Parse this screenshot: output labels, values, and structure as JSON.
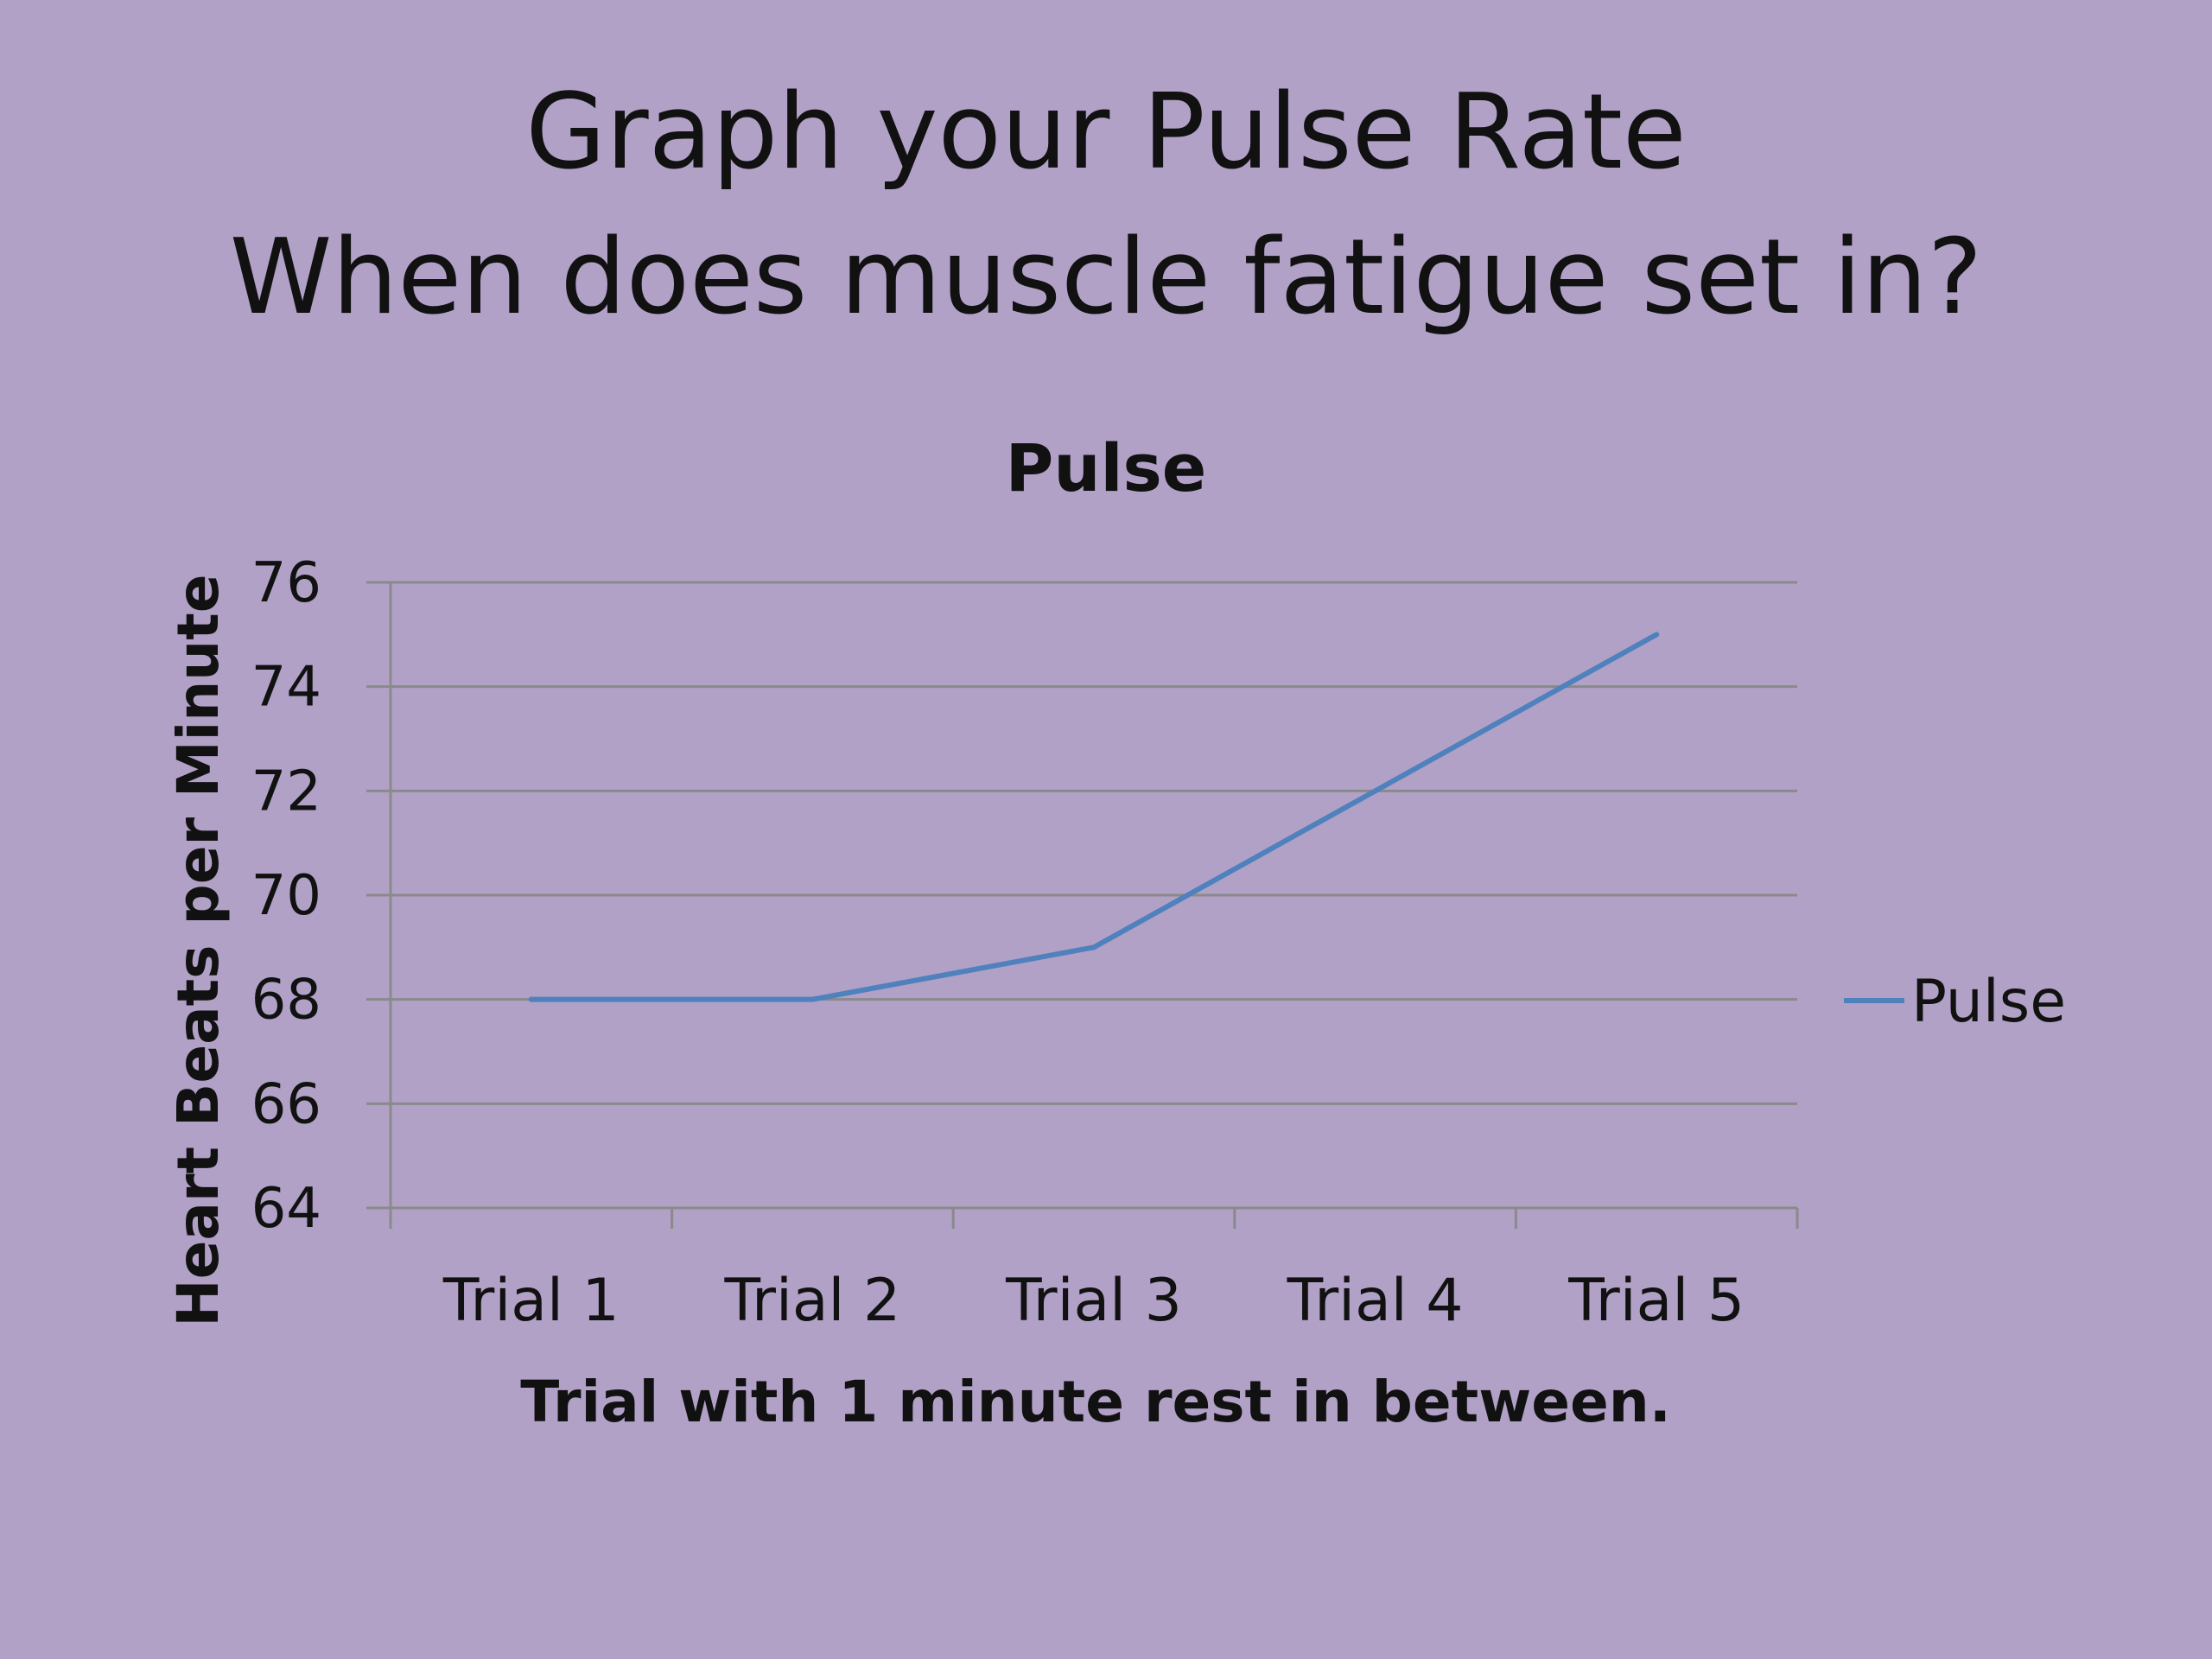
{
  "slide": {
    "title_line1": "Graph your Pulse Rate",
    "title_line2": "When does muscle fatigue set in?"
  },
  "colors": {
    "background": "#b1a1c7",
    "series": "#4f81bd",
    "gridline": "#8a8a8a",
    "text": "#111111"
  },
  "chart_data": {
    "type": "line",
    "title": "Pulse",
    "xlabel": "Trial with 1 minute rest in between.",
    "ylabel": "Heart Beats per Minute",
    "categories": [
      "Trial 1",
      "Trial 2",
      "Trial 3",
      "Trial 4",
      "Trial 5"
    ],
    "series": [
      {
        "name": "Pulse",
        "values": [
          68,
          68,
          69,
          72,
          75
        ]
      }
    ],
    "ylim": [
      64,
      76
    ],
    "yticks": [
      64,
      66,
      68,
      70,
      72,
      74,
      76
    ],
    "grid": true,
    "legend": "right"
  }
}
